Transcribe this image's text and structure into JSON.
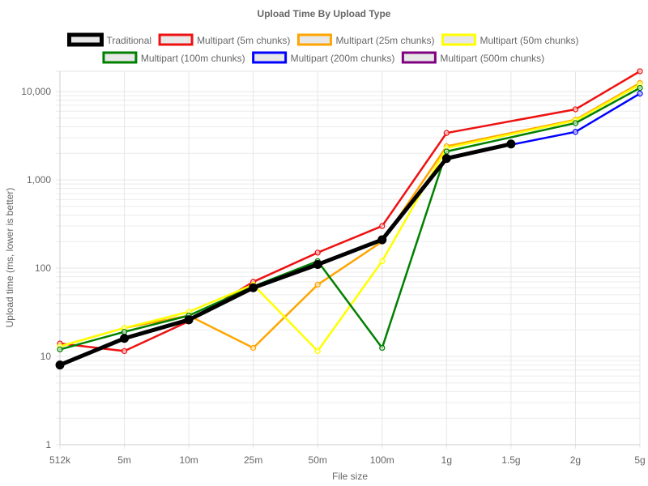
{
  "chart_data": {
    "type": "line",
    "title": "Upload Time By Upload Type",
    "xlabel": "File size",
    "ylabel": "Upload time (ms, lower is better)",
    "y_scale": "log",
    "ylim": [
      1,
      17000
    ],
    "y_ticks": [
      1,
      10,
      100,
      1000,
      10000
    ],
    "y_tick_labels": [
      "1",
      "10",
      "100",
      "1,000",
      "10,000"
    ],
    "grid": true,
    "legend_position": "top",
    "categories": [
      "512k",
      "5m",
      "10m",
      "25m",
      "50m",
      "100m",
      "1g",
      "1.5g",
      "2g",
      "5g"
    ],
    "series": [
      {
        "name": "Traditional",
        "color": "#000000",
        "values": [
          8,
          16,
          26,
          60,
          110,
          210,
          1750,
          2550,
          null,
          null
        ]
      },
      {
        "name": "Multipart (5m chunks)",
        "color": "#ee1111",
        "values": [
          14,
          11.5,
          25,
          70,
          150,
          300,
          3400,
          null,
          6300,
          17000
        ]
      },
      {
        "name": "Multipart (25m chunks)",
        "color": "#ffa500",
        "values": [
          13,
          21,
          29,
          12.5,
          65,
          200,
          2400,
          null,
          4800,
          12500
        ]
      },
      {
        "name": "Multipart (50m chunks)",
        "color": "#ffff00",
        "values": [
          13,
          21,
          32,
          65,
          11.5,
          120,
          2300,
          null,
          4700,
          12000
        ]
      },
      {
        "name": "Multipart (100m chunks)",
        "color": "#008000",
        "values": [
          12,
          19,
          29,
          62,
          120,
          12.5,
          2100,
          null,
          4400,
          11000
        ]
      },
      {
        "name": "Multipart (200m chunks)",
        "color": "#0000ff",
        "values": [
          null,
          null,
          null,
          null,
          null,
          null,
          1750,
          2500,
          3500,
          9500
        ]
      },
      {
        "name": "Multipart (500m chunks)",
        "color": "#800080",
        "values": [
          null,
          null,
          null,
          null,
          null,
          null,
          1750,
          2500,
          null,
          null
        ]
      }
    ]
  }
}
